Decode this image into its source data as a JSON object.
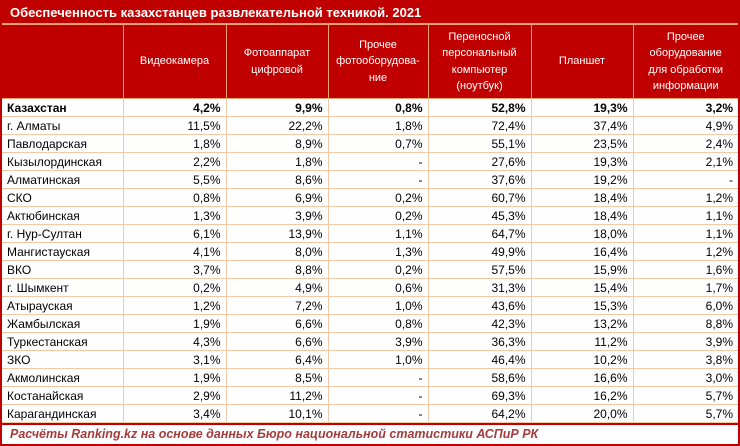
{
  "title": "Обеспеченность казахстанцев развлекательной техникой. 2021",
  "columns": [
    "Видеокамера",
    "Фотоаппарат\nцифровой",
    "Прочее\nфотооборудова-\nние",
    "Переносной\nперсональный\nкомпьютер\n(ноутбук)",
    "Планшет",
    "Прочее\nоборудование\nдля обработки\nинформации"
  ],
  "rows": [
    {
      "region": "Казахстан",
      "bold": true,
      "values": [
        "4,2%",
        "9,9%",
        "0,8%",
        "52,8%",
        "19,3%",
        "3,2%"
      ]
    },
    {
      "region": "г. Алматы",
      "bold": false,
      "values": [
        "11,5%",
        "22,2%",
        "1,8%",
        "72,4%",
        "37,4%",
        "4,9%"
      ]
    },
    {
      "region": "Павлодарская",
      "bold": false,
      "values": [
        "1,8%",
        "8,9%",
        "0,7%",
        "55,1%",
        "23,5%",
        "2,4%"
      ]
    },
    {
      "region": "Кызылординская",
      "bold": false,
      "values": [
        "2,2%",
        "1,8%",
        "-",
        "27,6%",
        "19,3%",
        "2,1%"
      ]
    },
    {
      "region": "Алматинская",
      "bold": false,
      "values": [
        "5,5%",
        "8,6%",
        "-",
        "37,6%",
        "19,2%",
        "-"
      ]
    },
    {
      "region": "СКО",
      "bold": false,
      "values": [
        "0,8%",
        "6,9%",
        "0,2%",
        "60,7%",
        "18,4%",
        "1,2%"
      ]
    },
    {
      "region": "Актюбинская",
      "bold": false,
      "values": [
        "1,3%",
        "3,9%",
        "0,2%",
        "45,3%",
        "18,4%",
        "1,1%"
      ]
    },
    {
      "region": "г. Нур-Султан",
      "bold": false,
      "values": [
        "6,1%",
        "13,9%",
        "1,1%",
        "64,7%",
        "18,0%",
        "1,1%"
      ]
    },
    {
      "region": "Мангистауская",
      "bold": false,
      "values": [
        "4,1%",
        "8,0%",
        "1,3%",
        "49,9%",
        "16,4%",
        "1,2%"
      ]
    },
    {
      "region": "ВКО",
      "bold": false,
      "values": [
        "3,7%",
        "8,8%",
        "0,2%",
        "57,5%",
        "15,9%",
        "1,6%"
      ]
    },
    {
      "region": "г. Шымкент",
      "bold": false,
      "values": [
        "0,2%",
        "4,9%",
        "0,6%",
        "31,3%",
        "15,4%",
        "1,7%"
      ]
    },
    {
      "region": "Атырауская",
      "bold": false,
      "values": [
        "1,2%",
        "7,2%",
        "1,0%",
        "43,6%",
        "15,3%",
        "6,0%"
      ]
    },
    {
      "region": "Жамбылская",
      "bold": false,
      "values": [
        "1,9%",
        "6,6%",
        "0,8%",
        "42,3%",
        "13,2%",
        "8,8%"
      ]
    },
    {
      "region": "Туркестанская",
      "bold": false,
      "values": [
        "4,3%",
        "6,6%",
        "3,9%",
        "36,3%",
        "11,2%",
        "3,9%"
      ]
    },
    {
      "region": "ЗКО",
      "bold": false,
      "values": [
        "3,1%",
        "6,4%",
        "1,0%",
        "46,4%",
        "10,2%",
        "3,8%"
      ]
    },
    {
      "region": "Акмолинская",
      "bold": false,
      "values": [
        "1,9%",
        "8,5%",
        "-",
        "58,6%",
        "16,6%",
        "3,0%"
      ]
    },
    {
      "region": "Костанайская",
      "bold": false,
      "values": [
        "2,9%",
        "11,2%",
        "-",
        "69,3%",
        "16,2%",
        "5,7%"
      ]
    },
    {
      "region": "Карагандинская",
      "bold": false,
      "values": [
        "3,4%",
        "10,1%",
        "-",
        "64,2%",
        "20,0%",
        "5,7%"
      ]
    }
  ],
  "footer": "Расчёты Ranking.kz на основе данных Бюро национальной статистики АСПиР РК",
  "colors": {
    "header_bg": "#C00000",
    "header_text": "#FFFFFF",
    "grid_border": "#F5C8A8",
    "outer_border": "#C00000",
    "body_text": "#000000",
    "footer_text": "#A43C3C"
  },
  "chart_data": {
    "type": "table",
    "title": "Обеспеченность казахстанцев развлекательной техникой. 2021",
    "unit": "%",
    "columns": [
      "Видеокамера",
      "Фотоаппарат цифровой",
      "Прочее фотооборудование",
      "Переносной персональный компьютер (ноутбук)",
      "Планшет",
      "Прочее оборудование для обработки информации"
    ],
    "rows": [
      [
        "Казахстан",
        4.2,
        9.9,
        0.8,
        52.8,
        19.3,
        3.2
      ],
      [
        "г. Алматы",
        11.5,
        22.2,
        1.8,
        72.4,
        37.4,
        4.9
      ],
      [
        "Павлодарская",
        1.8,
        8.9,
        0.7,
        55.1,
        23.5,
        2.4
      ],
      [
        "Кызылординская",
        2.2,
        1.8,
        null,
        27.6,
        19.3,
        2.1
      ],
      [
        "Алматинская",
        5.5,
        8.6,
        null,
        37.6,
        19.2,
        null
      ],
      [
        "СКО",
        0.8,
        6.9,
        0.2,
        60.7,
        18.4,
        1.2
      ],
      [
        "Актюбинская",
        1.3,
        3.9,
        0.2,
        45.3,
        18.4,
        1.1
      ],
      [
        "г. Нур-Султан",
        6.1,
        13.9,
        1.1,
        64.7,
        18.0,
        1.1
      ],
      [
        "Мангистауская",
        4.1,
        8.0,
        1.3,
        49.9,
        16.4,
        1.2
      ],
      [
        "ВКО",
        3.7,
        8.8,
        0.2,
        57.5,
        15.9,
        1.6
      ],
      [
        "г. Шымкент",
        0.2,
        4.9,
        0.6,
        31.3,
        15.4,
        1.7
      ],
      [
        "Атырауская",
        1.2,
        7.2,
        1.0,
        43.6,
        15.3,
        6.0
      ],
      [
        "Жамбылская",
        1.9,
        6.6,
        0.8,
        42.3,
        13.2,
        8.8
      ],
      [
        "Туркестанская",
        4.3,
        6.6,
        3.9,
        36.3,
        11.2,
        3.9
      ],
      [
        "ЗКО",
        3.1,
        6.4,
        1.0,
        46.4,
        10.2,
        3.8
      ],
      [
        "Акмолинская",
        1.9,
        8.5,
        null,
        58.6,
        16.6,
        3.0
      ],
      [
        "Костанайская",
        2.9,
        11.2,
        null,
        69.3,
        16.2,
        5.7
      ],
      [
        "Карагандинская",
        3.4,
        10.1,
        null,
        64.2,
        20.0,
        5.7
      ]
    ],
    "source_note": "Расчёты Ranking.kz на основе данных Бюро национальной статистики АСПиР РК"
  }
}
